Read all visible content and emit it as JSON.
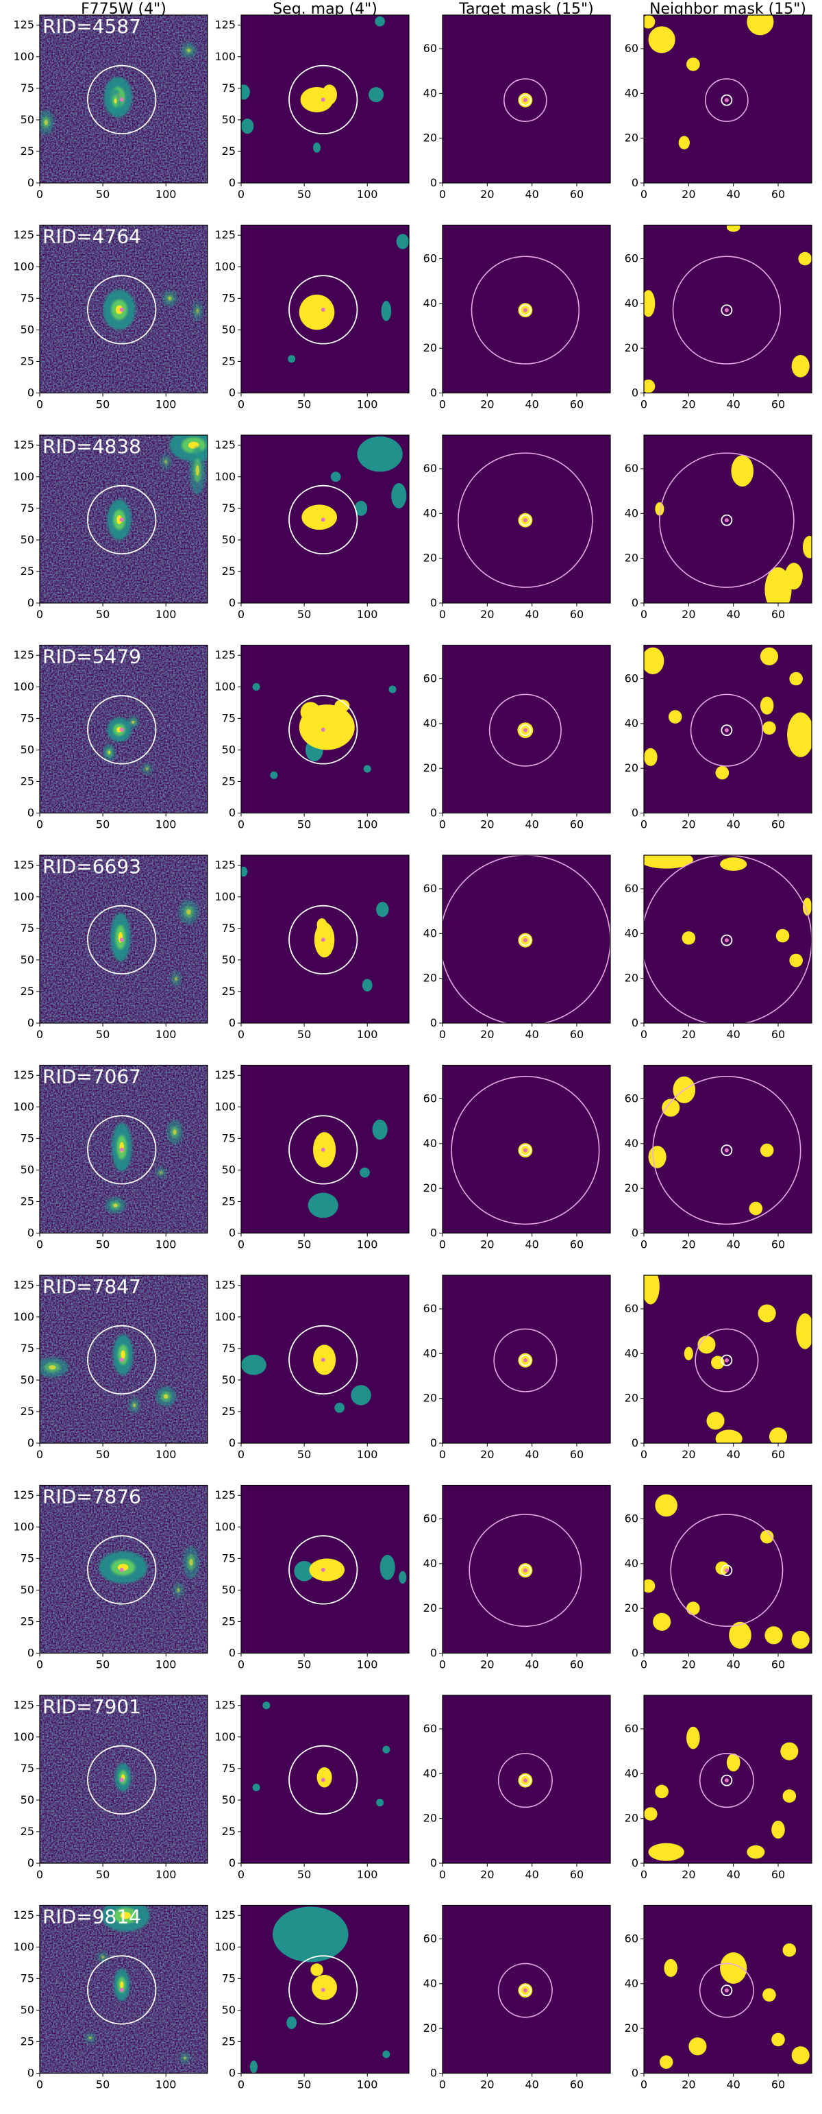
{
  "column_titles": [
    "F775W (4\")",
    "Seg. map (4\")",
    "Target mask (15\")",
    "Neighbor mask (15\")"
  ],
  "chart_data": {
    "type": "image-grid",
    "columns": [
      {
        "title": "F775W (4\")",
        "xlim": [
          0,
          133
        ],
        "ylim": [
          0,
          133
        ],
        "xticks": [
          0,
          50,
          100
        ],
        "yticks": [
          0,
          25,
          50,
          75,
          100,
          125
        ]
      },
      {
        "title": "Seg. map (4\")",
        "xlim": [
          0,
          133
        ],
        "ylim": [
          0,
          133
        ],
        "xticks": [
          0,
          50,
          100
        ],
        "yticks": [
          0,
          25,
          50,
          75,
          100,
          125
        ]
      },
      {
        "title": "Target mask (15\")",
        "xlim": [
          0,
          75
        ],
        "ylim": [
          0,
          75
        ],
        "xticks": [
          0,
          20,
          40,
          60
        ],
        "yticks": [
          0,
          20,
          40,
          60
        ]
      },
      {
        "title": "Neighbor mask (15\")",
        "xlim": [
          0,
          75
        ],
        "ylim": [
          0,
          75
        ],
        "xticks": [
          0,
          20,
          40,
          60
        ],
        "yticks": [
          0,
          20,
          40,
          60
        ]
      }
    ],
    "colors": {
      "background": "#440154",
      "mask": "#fde725",
      "neighbor": "#21918c",
      "center_marker": "#e377c2",
      "circle_white": "#ffffff",
      "circle_pink": "#e6a8e6"
    },
    "rows": [
      {
        "label": "RID=4587",
        "image_sources": [
          [
            62,
            68,
            7,
            10,
            1
          ],
          [
            60,
            65,
            3,
            6,
            0.9
          ],
          [
            5,
            48,
            4,
            6,
            0.6
          ],
          [
            118,
            105,
            4,
            4,
            0.5
          ]
        ],
        "seg_target": [
          [
            60,
            66,
            13,
            10
          ],
          [
            70,
            70,
            6,
            8
          ]
        ],
        "seg_neighbors": [
          [
            2,
            72,
            5,
            6
          ],
          [
            5,
            45,
            5,
            6
          ],
          [
            107,
            70,
            6,
            6
          ],
          [
            60,
            28,
            3,
            4
          ],
          [
            110,
            128,
            4,
            4
          ]
        ],
        "target_blob": [
          37,
          37,
          3.2
        ],
        "outer_radius": 9.5,
        "inner_radius": 2.3,
        "neighbors": [
          [
            8,
            64,
            6,
            6
          ],
          [
            2,
            72,
            3,
            3
          ],
          [
            52,
            72,
            6,
            6
          ],
          [
            22,
            53,
            3,
            3
          ],
          [
            18,
            18,
            2.5,
            3
          ]
        ]
      },
      {
        "label": "RID=4764",
        "image_sources": [
          [
            63,
            66,
            8,
            10,
            1
          ],
          [
            103,
            75,
            4,
            4,
            0.5
          ],
          [
            125,
            65,
            3,
            5,
            0.4
          ]
        ],
        "seg_target": [
          [
            60,
            64,
            14,
            14
          ]
        ],
        "seg_neighbors": [
          [
            115,
            65,
            4,
            8
          ],
          [
            128,
            120,
            5,
            6
          ],
          [
            40,
            27,
            3,
            3
          ]
        ],
        "target_blob": [
          37,
          37,
          3.2
        ],
        "outer_radius": 24,
        "inner_radius": 2.3,
        "neighbors": [
          [
            2,
            40,
            3,
            6
          ],
          [
            70,
            12,
            4,
            5
          ],
          [
            72,
            60,
            3,
            3
          ],
          [
            2,
            3,
            3,
            3
          ],
          [
            40,
            74,
            3,
            2
          ]
        ]
      },
      {
        "label": "RID=4838",
        "image_sources": [
          [
            63,
            66,
            6,
            10,
            1
          ],
          [
            122,
            125,
            12,
            8,
            1
          ],
          [
            125,
            105,
            4,
            12,
            0.7
          ],
          [
            100,
            112,
            3,
            4,
            0.4
          ]
        ],
        "seg_target": [
          [
            62,
            68,
            14,
            10
          ]
        ],
        "seg_neighbors": [
          [
            110,
            118,
            18,
            14
          ],
          [
            125,
            85,
            6,
            10
          ],
          [
            95,
            75,
            5,
            6
          ],
          [
            75,
            100,
            4,
            4
          ]
        ],
        "target_blob": [
          37,
          37,
          3.2
        ],
        "outer_radius": 30,
        "inner_radius": 2.3,
        "neighbors": [
          [
            44,
            59,
            5,
            7
          ],
          [
            7,
            42,
            2,
            3
          ],
          [
            74,
            25,
            3,
            5
          ],
          [
            60,
            6,
            6,
            10
          ],
          [
            67,
            12,
            4,
            6
          ]
        ]
      },
      {
        "label": "RID=5479",
        "image_sources": [
          [
            63,
            66,
            6,
            6,
            1
          ],
          [
            55,
            48,
            3,
            4,
            0.7
          ],
          [
            74,
            72,
            3,
            3,
            0.6
          ],
          [
            85,
            35,
            3,
            3,
            0.4
          ]
        ],
        "seg_target": [
          [
            68,
            68,
            22,
            18
          ],
          [
            55,
            80,
            8,
            8
          ],
          [
            80,
            85,
            6,
            5
          ]
        ],
        "seg_neighbors": [
          [
            58,
            50,
            7,
            9
          ],
          [
            12,
            100,
            3,
            3
          ],
          [
            120,
            98,
            3,
            3
          ],
          [
            26,
            30,
            3,
            3
          ],
          [
            100,
            35,
            3,
            3
          ]
        ],
        "target_blob": [
          37,
          37,
          3.5
        ],
        "outer_radius": 16,
        "inner_radius": 2.3,
        "neighbors": [
          [
            4,
            68,
            5,
            6
          ],
          [
            56,
            70,
            4,
            4
          ],
          [
            68,
            60,
            3,
            3
          ],
          [
            70,
            35,
            6,
            10
          ],
          [
            56,
            38,
            3,
            3
          ],
          [
            14,
            43,
            3,
            3
          ],
          [
            35,
            18,
            3,
            3
          ],
          [
            3,
            25,
            3,
            4
          ],
          [
            55,
            48,
            3,
            4
          ]
        ]
      },
      {
        "label": "RID=6693",
        "image_sources": [
          [
            64,
            68,
            5,
            12,
            1
          ],
          [
            118,
            88,
            5,
            6,
            0.6
          ],
          [
            108,
            35,
            3,
            4,
            0.4
          ]
        ],
        "seg_target": [
          [
            66,
            66,
            8,
            14
          ],
          [
            64,
            78,
            4,
            5
          ]
        ],
        "seg_neighbors": [
          [
            112,
            90,
            5,
            6
          ],
          [
            100,
            30,
            4,
            5
          ],
          [
            2,
            120,
            3,
            4
          ]
        ],
        "target_blob": [
          37,
          37,
          3.2
        ],
        "outer_radius": 38,
        "inner_radius": 2.3,
        "neighbors": [
          [
            10,
            73,
            12,
            4
          ],
          [
            40,
            71,
            6,
            3
          ],
          [
            20,
            38,
            3,
            3
          ],
          [
            62,
            39,
            3,
            3
          ],
          [
            73,
            52,
            2,
            4
          ],
          [
            68,
            28,
            3,
            3
          ]
        ]
      },
      {
        "label": "RID=7067",
        "image_sources": [
          [
            65,
            68,
            5,
            12,
            1
          ],
          [
            107,
            80,
            4,
            6,
            0.6
          ],
          [
            60,
            22,
            5,
            4,
            0.7
          ],
          [
            96,
            48,
            3,
            3,
            0.4
          ]
        ],
        "seg_target": [
          [
            66,
            66,
            9,
            14
          ]
        ],
        "seg_neighbors": [
          [
            110,
            82,
            6,
            8
          ],
          [
            65,
            22,
            12,
            10
          ],
          [
            98,
            48,
            4,
            4
          ]
        ],
        "target_blob": [
          37,
          37,
          3.2
        ],
        "outer_radius": 33,
        "inner_radius": 2.3,
        "neighbors": [
          [
            18,
            64,
            5,
            6
          ],
          [
            12,
            56,
            4,
            4
          ],
          [
            55,
            37,
            3,
            3
          ],
          [
            6,
            34,
            4,
            5
          ],
          [
            50,
            11,
            3,
            3
          ]
        ]
      },
      {
        "label": "RID=7847",
        "image_sources": [
          [
            66,
            70,
            5,
            10,
            1
          ],
          [
            10,
            60,
            8,
            5,
            0.7
          ],
          [
            100,
            37,
            5,
            5,
            0.7
          ],
          [
            75,
            30,
            3,
            4,
            0.5
          ]
        ],
        "seg_target": [
          [
            66,
            66,
            9,
            12
          ]
        ],
        "seg_neighbors": [
          [
            10,
            62,
            10,
            8
          ],
          [
            95,
            38,
            8,
            8
          ],
          [
            78,
            28,
            4,
            4
          ]
        ],
        "target_blob": [
          37,
          37,
          3.2
        ],
        "outer_radius": 14,
        "inner_radius": 2.3,
        "neighbors": [
          [
            3,
            70,
            4,
            8
          ],
          [
            55,
            58,
            4,
            4
          ],
          [
            72,
            50,
            4,
            8
          ],
          [
            28,
            44,
            4,
            4
          ],
          [
            33,
            36,
            3,
            3
          ],
          [
            32,
            10,
            4,
            4
          ],
          [
            38,
            2,
            6,
            4
          ],
          [
            60,
            3,
            4,
            4
          ],
          [
            20,
            40,
            2,
            3
          ]
        ]
      },
      {
        "label": "RID=7876",
        "image_sources": [
          [
            66,
            68,
            12,
            8,
            1
          ],
          [
            120,
            72,
            4,
            8,
            0.6
          ],
          [
            110,
            50,
            3,
            4,
            0.4
          ]
        ],
        "seg_target": [
          [
            68,
            66,
            14,
            9
          ]
        ],
        "seg_neighbors": [
          [
            116,
            68,
            6,
            10
          ],
          [
            50,
            65,
            8,
            8
          ],
          [
            128,
            60,
            3,
            5
          ]
        ],
        "target_blob": [
          37,
          37,
          3.2
        ],
        "outer_radius": 25,
        "inner_radius": 2.3,
        "neighbors": [
          [
            10,
            66,
            5,
            5
          ],
          [
            2,
            30,
            3,
            3
          ],
          [
            55,
            52,
            3,
            3
          ],
          [
            35,
            38,
            3,
            3
          ],
          [
            8,
            14,
            4,
            4
          ],
          [
            22,
            20,
            3,
            3
          ],
          [
            43,
            8,
            5,
            6
          ],
          [
            58,
            8,
            4,
            4
          ],
          [
            70,
            6,
            4,
            4
          ]
        ]
      },
      {
        "label": "RID=7901",
        "image_sources": [
          [
            66,
            68,
            4,
            7,
            1
          ]
        ],
        "seg_target": [
          [
            66,
            68,
            6,
            8
          ]
        ],
        "seg_neighbors": [
          [
            20,
            125,
            3,
            3
          ],
          [
            12,
            60,
            3,
            3
          ],
          [
            110,
            48,
            3,
            3
          ],
          [
            115,
            90,
            3,
            3
          ]
        ],
        "target_blob": [
          37,
          37,
          3.2
        ],
        "outer_radius": 12,
        "inner_radius": 2.3,
        "neighbors": [
          [
            22,
            56,
            3,
            5
          ],
          [
            8,
            32,
            3,
            3
          ],
          [
            40,
            45,
            3,
            4
          ],
          [
            65,
            50,
            4,
            4
          ],
          [
            65,
            30,
            3,
            3
          ],
          [
            60,
            15,
            3,
            4
          ],
          [
            3,
            22,
            3,
            3
          ],
          [
            10,
            5,
            8,
            4
          ],
          [
            50,
            5,
            4,
            3
          ]
        ]
      },
      {
        "label": "RID=9814",
        "image_sources": [
          [
            65,
            70,
            4,
            8,
            1
          ],
          [
            68,
            125,
            12,
            8,
            1
          ],
          [
            50,
            92,
            3,
            3,
            0.4
          ],
          [
            40,
            28,
            3,
            3,
            0.4
          ],
          [
            115,
            12,
            3,
            3,
            0.4
          ]
        ],
        "seg_target": [
          [
            66,
            68,
            10,
            10
          ],
          [
            60,
            82,
            5,
            5
          ]
        ],
        "seg_neighbors": [
          [
            55,
            110,
            30,
            22
          ],
          [
            40,
            40,
            4,
            5
          ],
          [
            10,
            5,
            3,
            5
          ],
          [
            115,
            15,
            3,
            3
          ]
        ],
        "target_blob": [
          37,
          37,
          3.2
        ],
        "outer_radius": 12,
        "inner_radius": 2.3,
        "neighbors": [
          [
            40,
            47,
            6,
            7
          ],
          [
            12,
            47,
            3,
            4
          ],
          [
            24,
            12,
            4,
            4
          ],
          [
            56,
            35,
            3,
            3
          ],
          [
            60,
            15,
            3,
            3
          ],
          [
            70,
            8,
            4,
            4
          ],
          [
            10,
            5,
            3,
            3
          ],
          [
            65,
            55,
            3,
            3
          ]
        ]
      }
    ]
  }
}
